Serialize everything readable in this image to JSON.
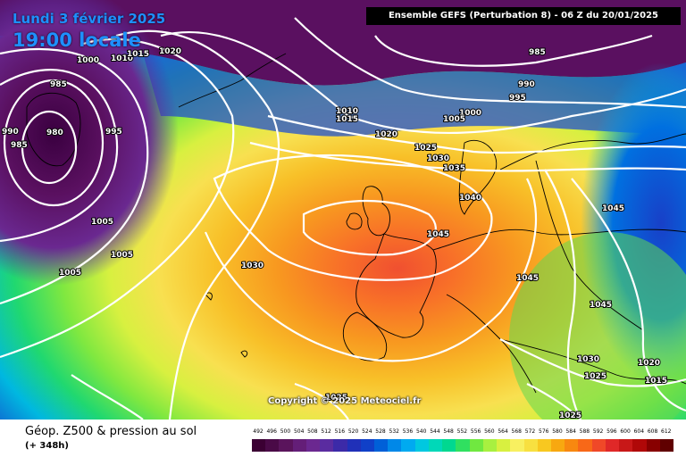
{
  "header": {
    "date": "Lundi 3 février 2025",
    "time": "19:00 locale",
    "run": "Ensemble GEFS  (Perturbation 8)  -  06 Z du 20/01/2025"
  },
  "map": {
    "copyright": "Copyright © 2025 Meteociel.fr",
    "isobar_labels": [
      "1000",
      "1010",
      "1015",
      "1020",
      "985",
      "985",
      "980",
      "990",
      "995",
      "1005",
      "1005",
      "1005",
      "1030",
      "1010",
      "1015",
      "1020",
      "1025",
      "1030",
      "1035",
      "1040",
      "1045",
      "1045",
      "1045",
      "1045",
      "1000",
      "1005",
      "995",
      "990",
      "985",
      "1030",
      "1025",
      "1020",
      "1015",
      "1025",
      "1025"
    ]
  },
  "footer": {
    "title": "Géop. Z500 & pression au sol",
    "lead": "(+ 348h)"
  },
  "legend": {
    "values": [
      "492",
      "496",
      "500",
      "504",
      "508",
      "512",
      "516",
      "520",
      "524",
      "528",
      "532",
      "536",
      "540",
      "544",
      "548",
      "552",
      "556",
      "560",
      "564",
      "568",
      "572",
      "576",
      "580",
      "584",
      "588",
      "592",
      "596",
      "600",
      "604",
      "608",
      "612"
    ],
    "colors": [
      "#3b0033",
      "#4a0a47",
      "#5a145c",
      "#641e78",
      "#6b2890",
      "#5a2ca0",
      "#3c2aa8",
      "#2030b8",
      "#1040c8",
      "#0060d8",
      "#0088e8",
      "#00aaf0",
      "#00c8e0",
      "#00d8b8",
      "#00d890",
      "#30e060",
      "#70e840",
      "#a8f040",
      "#d8f040",
      "#f8f060",
      "#f8e040",
      "#f8c820",
      "#f8a810",
      "#f88810",
      "#f86818",
      "#f04828",
      "#e02828",
      "#c81818",
      "#b00808",
      "#880000",
      "#600000"
    ]
  }
}
